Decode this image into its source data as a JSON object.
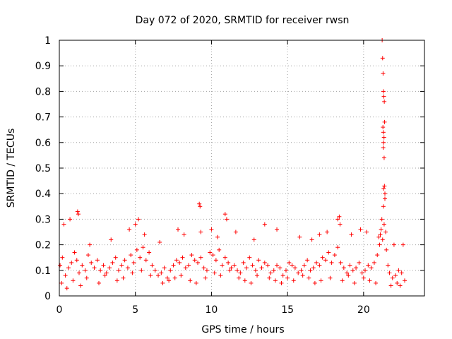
{
  "chart_data": {
    "type": "scatter",
    "title": "Day 072 of 2020, SRMTID for receiver rwsn",
    "xlabel": "GPS time / hours",
    "ylabel": "SRMTID / TECUs",
    "xlim": [
      0,
      24
    ],
    "ylim": [
      0,
      1
    ],
    "x_ticks": [
      0,
      5,
      10,
      15,
      20
    ],
    "x_tick_labels": [
      "0",
      "5",
      "10",
      "15",
      "20"
    ],
    "y_ticks": [
      0,
      0.1,
      0.2,
      0.3,
      0.4,
      0.5,
      0.6,
      0.7,
      0.8,
      0.9,
      1
    ],
    "y_tick_labels": [
      "0",
      "0.1",
      "0.2",
      "0.3",
      "0.4",
      "0.5",
      "0.6",
      "0.7",
      "0.8",
      "0.9",
      "1"
    ],
    "grid": true,
    "marker": "+",
    "color": "#ff0000",
    "series": [
      {
        "name": "SRMTID",
        "x": [
          0.05,
          0.2,
          0.4,
          0.6,
          0.8,
          1.0,
          1.15,
          1.3,
          1.5,
          1.7,
          1.9,
          2.1,
          2.3,
          2.5,
          2.7,
          2.9,
          3.1,
          3.3,
          3.5,
          3.7,
          3.9,
          4.1,
          4.3,
          4.5,
          4.7,
          4.9,
          5.1,
          5.3,
          5.5,
          5.7,
          5.9,
          6.1,
          6.3,
          6.5,
          6.7,
          6.9,
          7.1,
          7.3,
          7.5,
          7.7,
          7.9,
          8.1,
          8.3,
          8.5,
          8.7,
          8.9,
          9.1,
          9.3,
          9.5,
          9.7,
          9.9,
          10.1,
          10.3,
          10.5,
          10.7,
          10.9,
          11.1,
          11.3,
          11.5,
          11.7,
          11.9,
          12.1,
          12.3,
          12.5,
          12.7,
          12.9,
          13.1,
          13.3,
          13.5,
          13.7,
          13.9,
          14.1,
          14.3,
          14.5,
          14.7,
          14.9,
          15.1,
          15.3,
          15.5,
          15.7,
          15.9,
          16.1,
          16.3,
          16.5,
          16.7,
          16.9,
          17.1,
          17.3,
          17.5,
          17.7,
          17.9,
          18.1,
          18.3,
          18.5,
          18.7,
          18.9,
          19.1,
          19.3,
          19.5,
          19.7,
          19.9,
          20.1,
          20.3,
          20.5,
          20.7,
          20.9,
          21.05,
          21.15,
          21.2,
          21.25,
          21.3,
          21.35,
          21.4,
          21.45,
          21.5,
          21.6,
          21.7,
          21.9,
          22.1,
          22.3,
          22.5,
          22.7,
          0.3,
          0.7,
          1.2,
          1.25,
          2.0,
          3.4,
          4.6,
          5.0,
          5.2,
          5.6,
          6.6,
          7.8,
          8.2,
          9.2,
          9.25,
          9.3,
          10.0,
          10.4,
          10.9,
          11.0,
          11.6,
          12.8,
          13.5,
          14.3,
          15.8,
          16.6,
          17.1,
          17.6,
          18.3,
          18.4,
          18.45,
          19.2,
          19.8,
          20.2,
          21.0,
          21.1,
          22.0,
          22.6,
          0.15,
          0.5,
          0.9,
          1.4,
          1.8,
          2.6,
          3.0,
          3.8,
          4.2,
          4.8,
          5.4,
          6.0,
          6.8,
          7.2,
          7.6,
          8.0,
          8.6,
          9.0,
          9.6,
          10.2,
          10.6,
          11.2,
          11.8,
          12.2,
          12.6,
          13.0,
          13.8,
          14.2,
          14.6,
          15.0,
          15.4,
          16.0,
          16.4,
          16.8,
          17.2,
          17.8,
          18.6,
          19.0,
          19.4,
          20.0,
          20.4,
          20.8,
          21.8,
          22.2,
          22.4
        ],
        "y": [
          0.12,
          0.15,
          0.08,
          0.11,
          0.13,
          0.17,
          0.14,
          0.09,
          0.12,
          0.1,
          0.16,
          0.13,
          0.11,
          0.14,
          0.1,
          0.12,
          0.09,
          0.11,
          0.13,
          0.15,
          0.1,
          0.12,
          0.14,
          0.11,
          0.16,
          0.13,
          0.18,
          0.15,
          0.19,
          0.14,
          0.17,
          0.12,
          0.1,
          0.08,
          0.09,
          0.11,
          0.07,
          0.1,
          0.12,
          0.14,
          0.13,
          0.15,
          0.11,
          0.12,
          0.16,
          0.14,
          0.13,
          0.15,
          0.11,
          0.1,
          0.17,
          0.16,
          0.14,
          0.18,
          0.12,
          0.15,
          0.13,
          0.11,
          0.12,
          0.1,
          0.09,
          0.13,
          0.11,
          0.15,
          0.12,
          0.1,
          0.14,
          0.11,
          0.13,
          0.12,
          0.09,
          0.1,
          0.12,
          0.11,
          0.08,
          0.1,
          0.13,
          0.12,
          0.11,
          0.09,
          0.1,
          0.12,
          0.14,
          0.1,
          0.11,
          0.13,
          0.12,
          0.15,
          0.14,
          0.17,
          0.13,
          0.16,
          0.19,
          0.13,
          0.11,
          0.09,
          0.12,
          0.1,
          0.11,
          0.13,
          0.09,
          0.1,
          0.12,
          0.11,
          0.13,
          0.16,
          0.2,
          0.26,
          0.3,
          0.22,
          0.35,
          0.28,
          0.38,
          0.25,
          0.18,
          0.12,
          0.09,
          0.07,
          0.08,
          0.1,
          0.09,
          0.06,
          0.28,
          0.3,
          0.33,
          0.32,
          0.2,
          0.22,
          0.26,
          0.28,
          0.3,
          0.24,
          0.21,
          0.26,
          0.24,
          0.36,
          0.35,
          0.25,
          0.26,
          0.23,
          0.32,
          0.3,
          0.25,
          0.22,
          0.28,
          0.26,
          0.23,
          0.22,
          0.24,
          0.25,
          0.3,
          0.31,
          0.28,
          0.24,
          0.26,
          0.25,
          0.23,
          0.24,
          0.2,
          0.2,
          0.05,
          0.03,
          0.06,
          0.04,
          0.07,
          0.05,
          0.08,
          0.06,
          0.07,
          0.09,
          0.1,
          0.08,
          0.05,
          0.06,
          0.07,
          0.08,
          0.06,
          0.05,
          0.07,
          0.09,
          0.08,
          0.1,
          0.07,
          0.06,
          0.05,
          0.08,
          0.07,
          0.06,
          0.05,
          0.07,
          0.06,
          0.08,
          0.07,
          0.05,
          0.06,
          0.07,
          0.06,
          0.08,
          0.05,
          0.07,
          0.06,
          0.05,
          0.04,
          0.05,
          0.04
        ],
        "x_extra": [
          21.22,
          21.25,
          21.28,
          21.3,
          21.33,
          21.36,
          21.38,
          21.27,
          21.3,
          21.34,
          21.31,
          21.29,
          21.35,
          21.37,
          21.32,
          21.4
        ],
        "y_extra": [
          1.0,
          0.93,
          0.87,
          0.8,
          0.78,
          0.76,
          0.68,
          0.66,
          0.64,
          0.62,
          0.6,
          0.58,
          0.54,
          0.43,
          0.42,
          0.4
        ]
      }
    ]
  }
}
